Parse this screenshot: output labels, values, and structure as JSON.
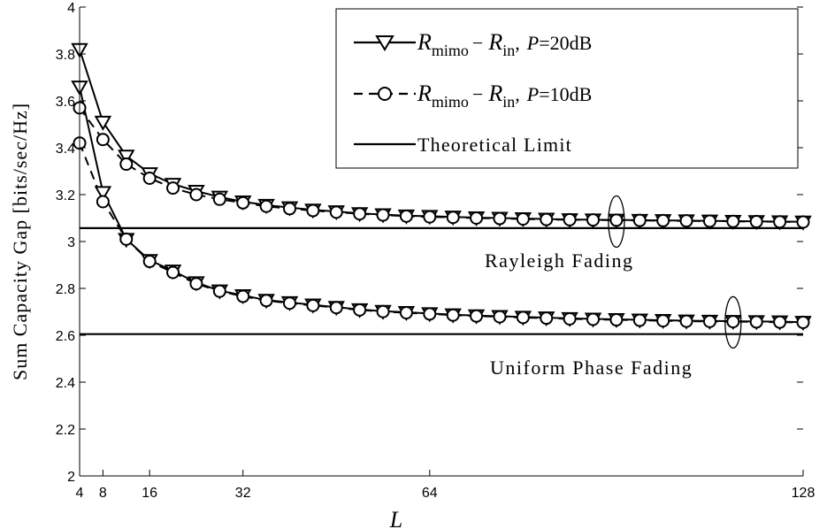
{
  "chart_data": {
    "type": "line",
    "title": "",
    "xlabel": "L",
    "ylabel": "Sum Capacity Gap [bits/sec/Hz]",
    "xlim": [
      4,
      128
    ],
    "ylim": [
      2,
      4
    ],
    "x_ticks": [
      4,
      8,
      16,
      32,
      64,
      128
    ],
    "y_ticks": [
      2,
      2.2,
      2.4,
      2.6,
      2.8,
      3,
      3.2,
      3.4,
      3.6,
      3.8,
      4
    ],
    "grid": false,
    "legend_position": "top-right",
    "legend": {
      "entry_p20": {
        "lhs": "R",
        "lhs_sub": "mimo",
        "op": "−",
        "rhs": "R",
        "rhs_sub": "in",
        "sep": ",",
        "pvar": "P",
        "pval": "=20dB"
      },
      "entry_p10": {
        "lhs": "R",
        "lhs_sub": "mimo",
        "op": "−",
        "rhs": "R",
        "rhs_sub": "in",
        "sep": ",",
        "pvar": "P",
        "pval": "=10dB"
      },
      "entry_limit": "Theoretical Limit"
    },
    "annotations": {
      "rayleigh": "Rayleigh Fading",
      "uniform": "Uniform Phase Fading"
    },
    "theoretical_limits": {
      "rayleigh": 3.057,
      "uniform": 2.605
    },
    "series": [
      {
        "name": "P=20dB",
        "group": "Rayleigh Fading",
        "marker": "triangle-down",
        "dash": false,
        "x": [
          4,
          8,
          12,
          16,
          20,
          24,
          28,
          32,
          36,
          40,
          44,
          48,
          52,
          56,
          60,
          64,
          68,
          72,
          76,
          80,
          84,
          88,
          92,
          96,
          100,
          104,
          108,
          112,
          116,
          120,
          124,
          128
        ],
        "y": [
          3.82,
          3.51,
          3.365,
          3.29,
          3.245,
          3.215,
          3.19,
          3.17,
          3.155,
          3.145,
          3.135,
          3.128,
          3.12,
          3.115,
          3.11,
          3.108,
          3.105,
          3.102,
          3.1,
          3.098,
          3.096,
          3.094,
          3.093,
          3.092,
          3.091,
          3.09,
          3.089,
          3.088,
          3.087,
          3.086,
          3.085,
          3.084
        ]
      },
      {
        "name": "P=10dB",
        "group": "Rayleigh Fading",
        "marker": "circle",
        "dash": true,
        "x": [
          4,
          8,
          12,
          16,
          20,
          24,
          28,
          32,
          36,
          40,
          44,
          48,
          52,
          56,
          60,
          64,
          68,
          72,
          76,
          80,
          84,
          88,
          92,
          96,
          100,
          104,
          108,
          112,
          116,
          120,
          124,
          128
        ],
        "y": [
          3.57,
          3.435,
          3.33,
          3.27,
          3.228,
          3.2,
          3.18,
          3.165,
          3.15,
          3.14,
          3.132,
          3.125,
          3.118,
          3.113,
          3.108,
          3.105,
          3.103,
          3.1,
          3.098,
          3.096,
          3.094,
          3.093,
          3.092,
          3.091,
          3.09,
          3.089,
          3.088,
          3.087,
          3.086,
          3.085,
          3.084,
          3.083
        ]
      },
      {
        "name": "P=20dB",
        "group": "Uniform Phase Fading",
        "marker": "triangle-down",
        "dash": false,
        "x": [
          4,
          8,
          12,
          16,
          20,
          24,
          28,
          32,
          36,
          40,
          44,
          48,
          52,
          56,
          60,
          64,
          68,
          72,
          76,
          80,
          84,
          88,
          92,
          96,
          100,
          104,
          108,
          112,
          116,
          120,
          124,
          128
        ],
        "y": [
          3.66,
          3.21,
          3.01,
          2.92,
          2.875,
          2.825,
          2.79,
          2.77,
          2.75,
          2.74,
          2.73,
          2.72,
          2.71,
          2.703,
          2.698,
          2.693,
          2.688,
          2.684,
          2.681,
          2.678,
          2.675,
          2.672,
          2.67,
          2.668,
          2.666,
          2.664,
          2.662,
          2.661,
          2.66,
          2.659,
          2.658,
          2.656
        ]
      },
      {
        "name": "P=10dB",
        "group": "Uniform Phase Fading",
        "marker": "circle",
        "dash": true,
        "x": [
          4,
          8,
          12,
          16,
          20,
          24,
          28,
          32,
          36,
          40,
          44,
          48,
          52,
          56,
          60,
          64,
          68,
          72,
          76,
          80,
          84,
          88,
          92,
          96,
          100,
          104,
          108,
          112,
          116,
          120,
          124,
          128
        ],
        "y": [
          3.42,
          3.17,
          3.01,
          2.915,
          2.868,
          2.82,
          2.788,
          2.766,
          2.748,
          2.737,
          2.727,
          2.718,
          2.708,
          2.701,
          2.696,
          2.691,
          2.686,
          2.682,
          2.679,
          2.676,
          2.673,
          2.67,
          2.668,
          2.666,
          2.664,
          2.662,
          2.66,
          2.659,
          2.658,
          2.657,
          2.656,
          2.655
        ]
      }
    ]
  }
}
